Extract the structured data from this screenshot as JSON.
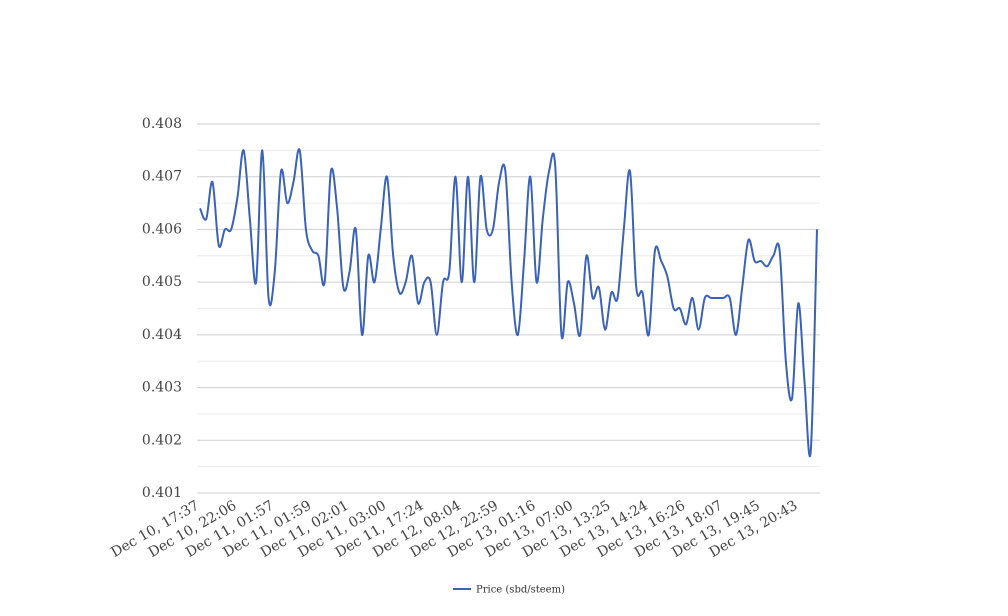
{
  "chart_data": {
    "type": "line",
    "categories": [
      "Dec 10, 17:37",
      null,
      null,
      null,
      null,
      null,
      "Dec 10, 22:06",
      null,
      null,
      null,
      null,
      null,
      "Dec 11, 01:57",
      null,
      null,
      null,
      null,
      null,
      "Dec 11, 01:59",
      null,
      null,
      null,
      null,
      null,
      "Dec 11, 02:01",
      null,
      null,
      null,
      null,
      null,
      "Dec 11, 03:00",
      null,
      null,
      null,
      null,
      null,
      "Dec 11, 17:24",
      null,
      null,
      null,
      null,
      null,
      "Dec 12, 08:04",
      null,
      null,
      null,
      null,
      null,
      "Dec 12, 22:59",
      null,
      null,
      null,
      null,
      null,
      "Dec 13, 01:16",
      null,
      null,
      null,
      null,
      null,
      "Dec 13, 07:00",
      null,
      null,
      null,
      null,
      null,
      "Dec 13, 13:25",
      null,
      null,
      null,
      null,
      null,
      "Dec 13, 14:24",
      null,
      null,
      null,
      null,
      null,
      "Dec 13, 16:26",
      null,
      null,
      null,
      null,
      null,
      "Dec 13, 18:07",
      null,
      null,
      null,
      null,
      null,
      "Dec 13, 19:45",
      null,
      null,
      null,
      null,
      null,
      "Dec 13, 20:43",
      null,
      null,
      null
    ],
    "series": [
      {
        "name": "Price (sbd/steem)",
        "color": "#3a62b8",
        "values": [
          0.4064,
          0.4062,
          0.4069,
          0.4057,
          0.406,
          0.406,
          0.4066,
          0.4075,
          0.4062,
          0.405,
          0.4075,
          0.4047,
          0.4052,
          0.4071,
          0.4065,
          0.4069,
          0.4075,
          0.406,
          0.4056,
          0.4055,
          0.405,
          0.4071,
          0.4064,
          0.4049,
          0.4052,
          0.406,
          0.404,
          0.4055,
          0.405,
          0.406,
          0.407,
          0.4055,
          0.4048,
          0.405,
          0.4055,
          0.4046,
          0.405,
          0.405,
          0.404,
          0.405,
          0.4052,
          0.407,
          0.405,
          0.407,
          0.405,
          0.407,
          0.406,
          0.406,
          0.4069,
          0.4071,
          0.405,
          0.404,
          0.4054,
          0.407,
          0.405,
          0.4062,
          0.4071,
          0.4072,
          0.404,
          0.405,
          0.4046,
          0.404,
          0.4055,
          0.4047,
          0.4049,
          0.4041,
          0.4048,
          0.4047,
          0.406,
          0.4071,
          0.4049,
          0.4048,
          0.404,
          0.4056,
          0.4054,
          0.4051,
          0.4045,
          0.4045,
          0.4042,
          0.4047,
          0.4041,
          0.4047,
          0.4047,
          0.4047,
          0.4047,
          0.4047,
          0.404,
          0.4049,
          0.4058,
          0.4054,
          0.4054,
          0.4053,
          0.4055,
          0.4056,
          0.4035,
          0.4028,
          0.4046,
          0.4031,
          0.4018,
          0.406
        ]
      }
    ],
    "ylim": [
      0.401,
      0.408
    ],
    "yticks": [
      0.401,
      0.402,
      0.403,
      0.404,
      0.405,
      0.406,
      0.407,
      0.408
    ],
    "yminorticks": [
      0.4015,
      0.4025,
      0.4035,
      0.4045,
      0.4055,
      0.4065,
      0.4075
    ],
    "grid": true,
    "legend": "bottom"
  }
}
